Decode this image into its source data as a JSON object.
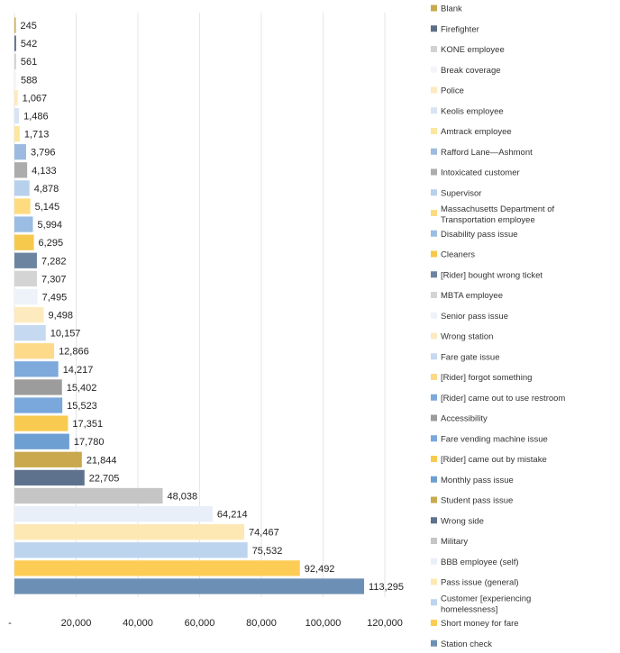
{
  "chart_data": {
    "type": "bar",
    "orientation": "horizontal",
    "title": "",
    "xlabel": "",
    "ylabel": "",
    "xlim": [
      0,
      120000
    ],
    "x_ticks": [
      "-",
      "20,000",
      "40,000",
      "60,000",
      "80,000",
      "100,000",
      "120,000"
    ],
    "x_tick_values": [
      0,
      20000,
      40000,
      60000,
      80000,
      100000,
      120000
    ],
    "grid": true,
    "legend_position": "right",
    "categories": [
      "Blank",
      "Firefighter",
      "KONE employee",
      "Break coverage",
      "Police",
      "Keolis employee",
      "Amtrack employee",
      "Rafford Lane—Ashmont",
      "Intoxicated customer",
      "Supervisor",
      "Massachusetts Department of Transportation employee",
      "Disability pass issue",
      "Cleaners",
      "[Rider] bought wrong ticket",
      "MBTA employee",
      "Senior pass issue",
      "Wrong station",
      "Fare gate issue",
      "[Rider] forgot something",
      "[Rider] came out to use restroom",
      "Accessibility",
      "Fare vending machine issue",
      "[Rider] came out by mistake",
      "Monthly pass issue",
      "Student pass issue",
      "Wrong side",
      "Military",
      "BBB employee (self)",
      "Pass issue (general)",
      "Customer [experiencing homelessness]",
      "Short money for fare",
      "Station check"
    ],
    "values": [
      245,
      542,
      561,
      588,
      1067,
      1486,
      1713,
      3796,
      4133,
      4878,
      5145,
      5994,
      6295,
      7282,
      7307,
      7495,
      9498,
      10157,
      12866,
      14217,
      15402,
      15523,
      17351,
      17780,
      21844,
      22705,
      48038,
      64214,
      74467,
      75532,
      92492,
      113295
    ],
    "value_labels": [
      "245",
      "542",
      "561",
      "588",
      "1,067",
      "1,486",
      "1,713",
      "3,796",
      "4,133",
      "4,878",
      "5,145",
      "5,994",
      "6,295",
      "7,282",
      "7,307",
      "7,495",
      "9,498",
      "10,157",
      "12,866",
      "14,217",
      "15,402",
      "15,523",
      "17,351",
      "17,780",
      "21,844",
      "22,705",
      "48,038",
      "64,214",
      "74,467",
      "75,532",
      "92,492",
      "113,295"
    ],
    "colors": [
      "#c9a94f",
      "#5c6f87",
      "#d2d2d2",
      "#f3f5f9",
      "#fde9bd",
      "#d9e4f3",
      "#fde69d",
      "#9dbbe0",
      "#acacac",
      "#b7d0ec",
      "#fedb7f",
      "#9bbde3",
      "#f6c84c",
      "#6d84a0",
      "#d4d4d4",
      "#eef3fa",
      "#fdeabf",
      "#c5d9f0",
      "#fdd98a",
      "#7da9db",
      "#9c9c9c",
      "#7aa7dc",
      "#f8cb50",
      "#6e9fd2",
      "#c9a84e",
      "#5e728d",
      "#c5c5c5",
      "#e9eff8",
      "#fde8b4",
      "#bcd4ee",
      "#fdcc55",
      "#6c90b5"
    ]
  }
}
